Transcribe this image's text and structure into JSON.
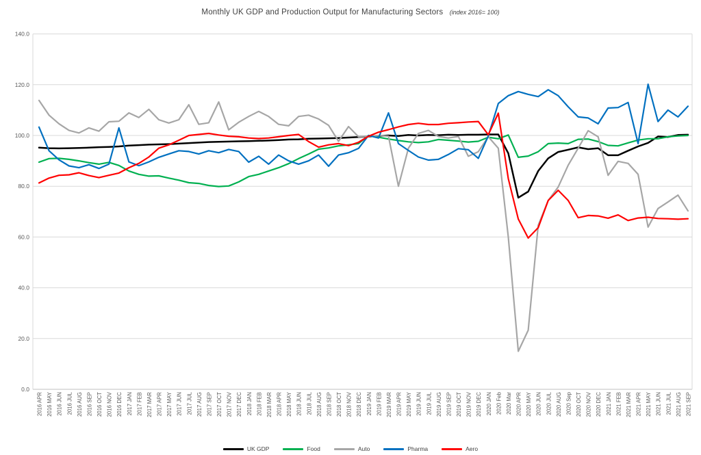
{
  "chart_data": {
    "type": "line",
    "title": "Monthly UK GDP and Production Output for Manufacturing Sectors",
    "subtitle": "(index 2016= 100)",
    "xlabel": "",
    "ylabel": "",
    "ylim": [
      0,
      140
    ],
    "ytick_step": 20,
    "ytick_labels": [
      "0.0",
      "20.0",
      "40.0",
      "60.0",
      "80.0",
      "100.0",
      "120.0",
      "140.0"
    ],
    "grid": true,
    "legend_position": "bottom",
    "categories": [
      "2016 APR",
      "2016 MAY",
      "2016 JUN",
      "2016 JUL",
      "2016 AUG",
      "2016 SEP",
      "2016 OCT",
      "2016 NOV",
      "2016 DEC",
      "2017 JAN",
      "2017 FEB",
      "2017 MAR",
      "2017 APR",
      "2017 MAY",
      "2017 JUN",
      "2017 JUL",
      "2017 AUG",
      "2017 SEP",
      "2017 OCT",
      "2017 NOV",
      "2017 DEC",
      "2018 JAN",
      "2018 FEB",
      "2018 MAR",
      "2018 APR",
      "2018 MAY",
      "2018 JUN",
      "2018 JUL",
      "2018 AUG",
      "2018 SEP",
      "2018 OCT",
      "2018 NOV",
      "2018 DEC",
      "2019 JAN",
      "2019 FEB",
      "2019 MAR",
      "2019 APR",
      "2019 MAY",
      "2019 JUN",
      "2019 JUL",
      "2019 AUG",
      "2019 SEP",
      "2019 OCT",
      "2019 NOV",
      "2019 DEC",
      "2020 JAN",
      "2020 Feb",
      "2020 Mar",
      "2020 APR",
      "2020 MAY",
      "2020 JUN",
      "2020 JUL",
      "2020 AUG",
      "2020 Sep",
      "2020 OCT",
      "2020 NOV",
      "2020 DEC",
      "2021 JAN",
      "2021 FEB",
      "2021 MAR",
      "2021 APR",
      "2021 MAY",
      "2021 JUN",
      "2021 JUL",
      "2021 AUG",
      "2021 SEP"
    ],
    "series": [
      {
        "name": "UK GDP",
        "color": "#000000",
        "width": 2.5,
        "values": [
          95.2,
          95.0,
          94.9,
          95.0,
          95.1,
          95.2,
          95.4,
          95.5,
          95.7,
          96.0,
          96.2,
          96.4,
          96.5,
          96.6,
          96.8,
          97.0,
          97.2,
          97.4,
          97.5,
          97.6,
          97.7,
          97.8,
          97.9,
          98.0,
          98.2,
          98.4,
          98.5,
          98.7,
          98.8,
          98.9,
          99.0,
          99.2,
          99.4,
          99.6,
          99.8,
          100.0,
          99.8,
          100.2,
          100.0,
          100.2,
          100.1,
          100.3,
          100.2,
          100.3,
          100.3,
          100.4,
          100.4,
          93.0,
          75.5,
          77.9,
          86.0,
          91.0,
          93.5,
          94.4,
          95.3,
          94.6,
          95.0,
          92.2,
          92.2,
          94.0,
          95.7,
          97.1,
          99.6,
          99.4,
          100.2,
          100.3
        ]
      },
      {
        "name": "Food",
        "color": "#00B050",
        "width": 2.2,
        "values": [
          89.5,
          90.9,
          91.0,
          90.6,
          90.0,
          89.3,
          88.7,
          89.4,
          88.2,
          86.0,
          84.7,
          84.0,
          84.1,
          83.2,
          82.4,
          81.4,
          81.1,
          80.3,
          79.9,
          80.1,
          81.7,
          83.8,
          84.7,
          86.0,
          87.3,
          88.9,
          90.9,
          92.7,
          94.6,
          95.1,
          95.9,
          96.3,
          96.8,
          100.0,
          99.3,
          98.6,
          98.0,
          97.5,
          97.2,
          97.5,
          98.4,
          98.1,
          97.8,
          97.4,
          97.7,
          99.3,
          98.7,
          100.2,
          91.4,
          91.9,
          93.6,
          96.8,
          97.0,
          96.8,
          98.5,
          98.6,
          97.6,
          96.1,
          95.9,
          97.1,
          98.2,
          98.7,
          98.7,
          99.5,
          99.8,
          100.0
        ]
      },
      {
        "name": "Auto",
        "color": "#A6A6A6",
        "width": 2.2,
        "values": [
          113.8,
          108.0,
          104.6,
          102.0,
          101.0,
          103.0,
          101.7,
          105.4,
          105.6,
          108.9,
          107.1,
          110.3,
          106.2,
          104.9,
          106.2,
          112.1,
          104.4,
          105.0,
          113.2,
          102.2,
          105.2,
          107.5,
          109.5,
          107.5,
          104.4,
          103.8,
          107.5,
          108.0,
          106.5,
          104.0,
          97.7,
          103.5,
          99.5,
          99.7,
          100.0,
          99.7,
          80.0,
          95.0,
          100.8,
          102.0,
          99.6,
          99.0,
          99.6,
          91.8,
          93.6,
          99.5,
          95.0,
          60.0,
          15.0,
          23.3,
          64.6,
          74.4,
          79.7,
          88.3,
          95.0,
          101.9,
          99.5,
          84.3,
          89.8,
          89.0,
          84.7,
          63.9,
          71.2,
          73.8,
          76.5,
          70.3
        ]
      },
      {
        "name": "Pharma",
        "color": "#0070C0",
        "width": 2.2,
        "values": [
          103.3,
          94.0,
          90.4,
          88.0,
          87.3,
          88.5,
          87.0,
          88.7,
          103.0,
          89.6,
          88.1,
          89.6,
          91.4,
          92.7,
          94.0,
          93.7,
          92.7,
          94.0,
          93.2,
          94.5,
          93.7,
          89.5,
          91.8,
          88.7,
          92.3,
          90.0,
          88.7,
          90.0,
          92.3,
          87.9,
          92.3,
          93.2,
          94.9,
          100.0,
          99.0,
          108.9,
          96.8,
          94.1,
          91.5,
          90.3,
          90.6,
          92.5,
          94.8,
          94.4,
          91.0,
          99.8,
          112.6,
          115.7,
          117.3,
          116.2,
          115.3,
          118.0,
          115.7,
          111.3,
          107.3,
          106.9,
          104.6,
          110.8,
          111.0,
          113.0,
          96.8,
          120.2,
          105.5,
          110.0,
          107.3,
          111.5
        ]
      },
      {
        "name": "Aero",
        "color": "#FF0000",
        "width": 2.2,
        "values": [
          81.3,
          83.2,
          84.3,
          84.5,
          85.3,
          84.2,
          83.4,
          84.3,
          85.2,
          87.3,
          89.0,
          91.5,
          95.0,
          96.3,
          98.1,
          100.0,
          100.4,
          100.8,
          100.2,
          99.7,
          99.5,
          99.0,
          98.8,
          99.0,
          99.5,
          100.0,
          100.4,
          97.6,
          95.4,
          96.3,
          96.8,
          96.0,
          97.3,
          99.7,
          101.3,
          102.3,
          103.4,
          104.3,
          104.8,
          104.3,
          104.3,
          104.8,
          105.0,
          105.3,
          105.5,
          100.3,
          108.8,
          83.0,
          67.1,
          59.6,
          63.7,
          74.4,
          78.4,
          74.4,
          67.6,
          68.5,
          68.3,
          67.4,
          68.7,
          66.5,
          67.5,
          67.8,
          67.3,
          67.2,
          67.0,
          67.2
        ]
      }
    ],
    "style": {
      "grid_color": "#D9D9D9",
      "axis_line_color": "#BFBFBF",
      "tick_text_color": "#595959",
      "title_color": "#404040",
      "background": "#FFFFFF"
    }
  }
}
